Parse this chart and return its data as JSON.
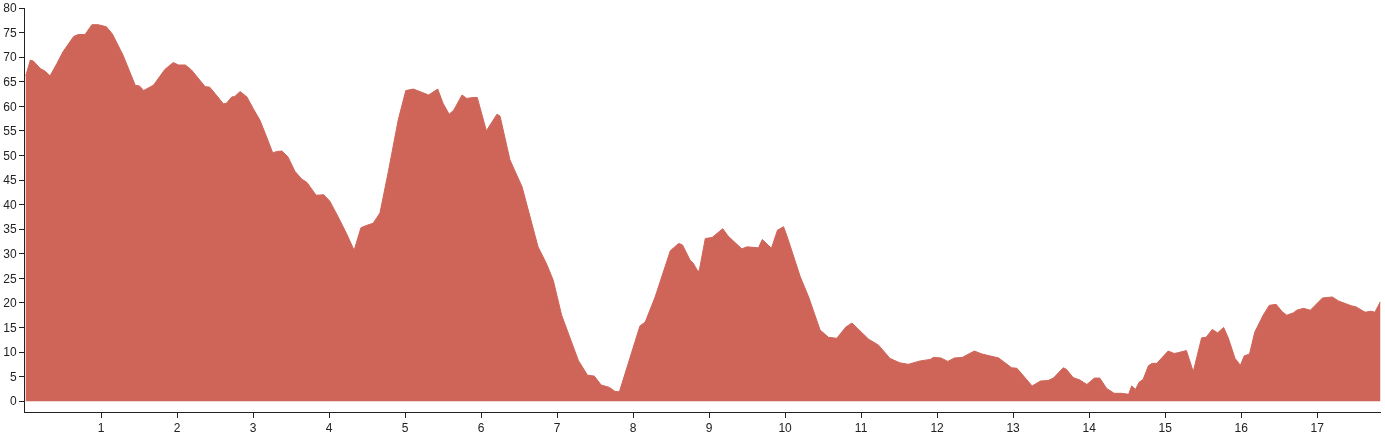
{
  "chart_data": {
    "type": "area",
    "color": "#cf6559",
    "x": [
      0.01,
      0.07,
      0.11,
      0.2,
      0.26,
      0.33,
      0.42,
      0.5,
      0.64,
      0.7,
      0.79,
      0.88,
      0.96,
      1.07,
      1.15,
      1.29,
      1.45,
      1.51,
      1.56,
      1.69,
      1.84,
      1.95,
      2.02,
      2.11,
      2.19,
      2.37,
      2.43,
      2.5,
      2.61,
      2.65,
      2.72,
      2.76,
      2.83,
      2.92,
      3.0,
      3.09,
      3.16,
      3.26,
      3.31,
      3.38,
      3.46,
      3.55,
      3.64,
      3.71,
      3.83,
      3.93,
      4.01,
      4.12,
      4.23,
      4.33,
      4.42,
      4.5,
      4.58,
      4.67,
      4.78,
      4.91,
      5.01,
      5.11,
      5.31,
      5.43,
      5.5,
      5.58,
      5.64,
      5.75,
      5.81,
      5.9,
      5.95,
      6.07,
      6.21,
      6.25,
      6.38,
      6.54,
      6.75,
      6.86,
      6.95,
      7.06,
      7.28,
      7.4,
      7.49,
      7.58,
      7.69,
      7.76,
      7.82,
      8.09,
      8.16,
      8.29,
      8.49,
      8.6,
      8.65,
      8.75,
      8.79,
      8.85,
      8.87,
      8.95,
      9.04,
      9.18,
      9.25,
      9.43,
      9.5,
      9.65,
      9.7,
      9.82,
      9.9,
      9.98,
      10.04,
      10.2,
      10.31,
      10.46,
      10.57,
      10.68,
      10.8,
      10.88,
      11.1,
      11.23,
      11.38,
      11.51,
      11.62,
      11.78,
      11.91,
      11.95,
      12.05,
      12.14,
      12.23,
      12.33,
      12.49,
      12.59,
      12.81,
      12.98,
      13.05,
      13.25,
      13.36,
      13.46,
      13.53,
      13.66,
      13.7,
      13.79,
      13.88,
      13.97,
      14.07,
      14.14,
      14.23,
      14.33,
      14.43,
      14.52,
      14.56,
      14.61,
      14.66,
      14.71,
      14.78,
      14.83,
      14.89,
      15.04,
      15.12,
      15.18,
      15.28,
      15.37,
      15.48,
      15.54,
      15.62,
      15.69,
      15.77,
      15.83,
      15.92,
      15.99,
      16.04,
      16.11,
      16.18,
      16.29,
      16.37,
      16.46,
      16.54,
      16.6,
      16.69,
      16.73,
      16.82,
      16.91,
      17.07,
      17.2,
      17.28,
      17.45,
      17.51,
      17.63,
      17.71,
      17.76,
      17.83
    ],
    "values": [
      66.2,
      69.4,
      69.2,
      67.7,
      67.2,
      66.2,
      68.7,
      71.1,
      74.2,
      74.6,
      74.6,
      76.6,
      76.6,
      76.2,
      74.7,
      70.4,
      64.3,
      64.1,
      63.2,
      64.3,
      67.5,
      68.9,
      68.4,
      68.4,
      67.4,
      64.0,
      63.9,
      62.6,
      60.5,
      60.6,
      61.9,
      62.0,
      63.0,
      61.9,
      59.6,
      57.2,
      54.5,
      50.5,
      50.8,
      50.9,
      49.7,
      46.8,
      45.2,
      44.5,
      41.9,
      42.0,
      40.7,
      37.5,
      34.1,
      30.7,
      35.3,
      35.8,
      36.2,
      38.3,
      46.7,
      57.2,
      63.2,
      63.5,
      62.3,
      63.5,
      60.6,
      58.4,
      59.2,
      62.3,
      61.6,
      61.8,
      61.8,
      55.0,
      58.4,
      58.0,
      49.1,
      43.6,
      31.4,
      28.0,
      24.6,
      17.5,
      8.3,
      5.3,
      5.1,
      3.3,
      2.8,
      2.0,
      1.9,
      15.3,
      16.1,
      21.2,
      30.6,
      32.1,
      31.8,
      28.7,
      28.1,
      26.5,
      26.5,
      33.1,
      33.3,
      35.1,
      33.6,
      31.0,
      31.4,
      31.2,
      32.9,
      31.1,
      34.8,
      35.5,
      32.9,
      25.3,
      21.2,
      14.5,
      13.0,
      12.8,
      15.1,
      15.9,
      12.6,
      11.4,
      8.7,
      7.8,
      7.5,
      8.2,
      8.5,
      8.9,
      8.8,
      8.1,
      8.8,
      8.9,
      10.2,
      9.6,
      8.8,
      6.8,
      6.7,
      3.1,
      4.1,
      4.2,
      4.7,
      6.8,
      6.5,
      4.8,
      4.3,
      3.4,
      4.7,
      4.7,
      2.6,
      1.6,
      1.6,
      1.4,
      3.1,
      2.4,
      3.9,
      4.4,
      7.2,
      7.7,
      7.7,
      10.2,
      9.7,
      9.9,
      10.3,
      6.0,
      12.9,
      13.0,
      14.6,
      13.9,
      15.0,
      12.9,
      8.7,
      7.3,
      9.2,
      9.6,
      14.1,
      17.5,
      19.5,
      19.7,
      18.2,
      17.5,
      18.0,
      18.5,
      18.9,
      18.5,
      21.0,
      21.2,
      20.4,
      19.4,
      19.2,
      18.1,
      18.3,
      18.1,
      20.2
    ],
    "xlim": [
      0,
      17.84
    ],
    "ylim": [
      -2.2,
      80
    ],
    "xticks": [
      1,
      2,
      3,
      4,
      5,
      6,
      7,
      8,
      9,
      10,
      11,
      12,
      13,
      14,
      15,
      16,
      17
    ],
    "yticks": [
      0,
      5,
      10,
      15,
      20,
      25,
      30,
      35,
      40,
      45,
      50,
      55,
      60,
      65,
      70,
      75,
      80
    ],
    "grid": false,
    "legend": false
  }
}
